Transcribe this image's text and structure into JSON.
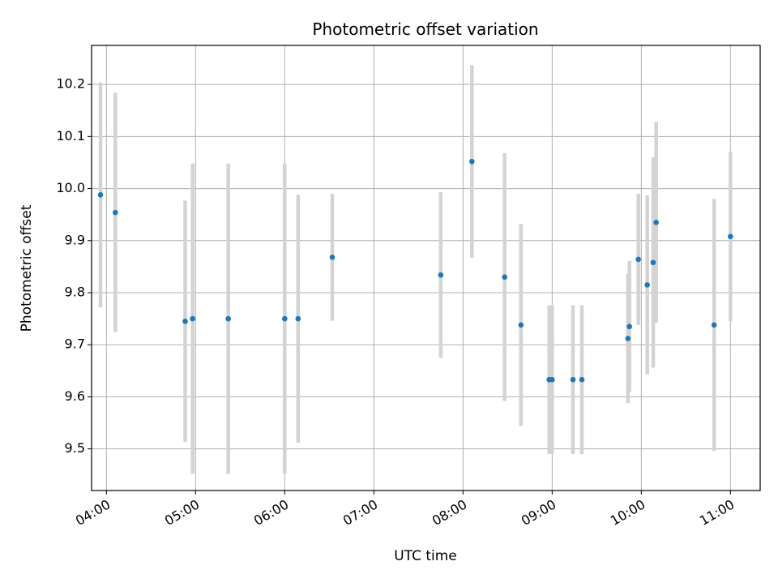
{
  "chart_data": {
    "type": "scatter",
    "title": "Photometric offset variation",
    "xlabel": "UTC time",
    "ylabel": "Photometric offset",
    "x_axis": {
      "kind": "time",
      "range": [
        "03:50",
        "11:20"
      ],
      "ticks": [
        "04:00",
        "05:00",
        "06:00",
        "07:00",
        "08:00",
        "09:00",
        "10:00",
        "11:00"
      ]
    },
    "y_axis": {
      "range": [
        9.42,
        10.275
      ],
      "ticks": [
        "9.5",
        "9.6",
        "9.7",
        "9.8",
        "9.9",
        "10.0",
        "10.1",
        "10.2"
      ]
    },
    "grid": true,
    "legend": "none",
    "colors": {
      "point": "#1f77b4",
      "errorbar": "#d3d3d3",
      "grid": "#b0b0b0"
    },
    "series": [
      {
        "points": [
          {
            "x": "03:56",
            "y": 9.988,
            "err": 0.216
          },
          {
            "x": "04:06",
            "y": 9.954,
            "err": 0.23
          },
          {
            "x": "04:53",
            "y": 9.745,
            "err": 0.232
          },
          {
            "x": "04:58",
            "y": 9.75,
            "err": 0.298
          },
          {
            "x": "05:22",
            "y": 9.75,
            "err": 0.298
          },
          {
            "x": "06:00",
            "y": 9.75,
            "err": 0.298
          },
          {
            "x": "06:09",
            "y": 9.75,
            "err": 0.238
          },
          {
            "x": "06:32",
            "y": 9.868,
            "err": 0.122
          },
          {
            "x": "07:45",
            "y": 9.834,
            "err": 0.159
          },
          {
            "x": "08:06",
            "y": 10.052,
            "err": 0.185
          },
          {
            "x": "08:28",
            "y": 9.83,
            "err": 0.238
          },
          {
            "x": "08:39",
            "y": 9.738,
            "err": 0.194
          },
          {
            "x": "08:58",
            "y": 9.633,
            "err": 0.143
          },
          {
            "x": "09:00",
            "y": 9.633,
            "err": 0.143
          },
          {
            "x": "09:14",
            "y": 9.633,
            "err": 0.143
          },
          {
            "x": "09:20",
            "y": 9.633,
            "err": 0.143
          },
          {
            "x": "09:51",
            "y": 9.712,
            "err": 0.124
          },
          {
            "x": "09:52",
            "y": 9.735,
            "err": 0.126
          },
          {
            "x": "09:58",
            "y": 9.864,
            "err": 0.126
          },
          {
            "x": "10:04",
            "y": 9.815,
            "err": 0.172
          },
          {
            "x": "10:08",
            "y": 9.858,
            "err": 0.202
          },
          {
            "x": "10:10",
            "y": 9.935,
            "err": 0.193
          },
          {
            "x": "10:49",
            "y": 9.738,
            "err": 0.242
          },
          {
            "x": "11:00",
            "y": 9.908,
            "err": 0.163
          }
        ]
      }
    ]
  }
}
